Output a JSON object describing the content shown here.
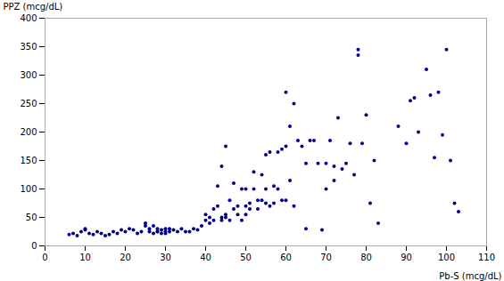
{
  "chart_data": {
    "type": "scatter",
    "xlabel": "Pb-S (mcg/dL)",
    "ylabel": "PPZ (mcg/dL)",
    "x": [
      6,
      7,
      8,
      9,
      10,
      10,
      11,
      12,
      13,
      14,
      15,
      16,
      17,
      18,
      19,
      20,
      21,
      22,
      23,
      24,
      25,
      25,
      26,
      26,
      27,
      27,
      28,
      28,
      28,
      29,
      29,
      30,
      30,
      30,
      31,
      31,
      32,
      33,
      34,
      35,
      36,
      37,
      38,
      39,
      40,
      40,
      41,
      41,
      42,
      42,
      43,
      43,
      44,
      44,
      44,
      45,
      45,
      45,
      46,
      46,
      47,
      47,
      48,
      48,
      49,
      49,
      50,
      50,
      50,
      51,
      51,
      52,
      52,
      53,
      53,
      54,
      54,
      55,
      55,
      55,
      56,
      56,
      57,
      57,
      58,
      58,
      59,
      59,
      60,
      60,
      60,
      61,
      61,
      62,
      62,
      63,
      64,
      65,
      65,
      66,
      67,
      68,
      69,
      70,
      70,
      71,
      72,
      72,
      73,
      74,
      75,
      76,
      77,
      78,
      78,
      79,
      80,
      81,
      82,
      83,
      88,
      90,
      91,
      92,
      93,
      95,
      96,
      97,
      98,
      99,
      100,
      101,
      102,
      103
    ],
    "values": [
      20,
      22,
      18,
      25,
      28,
      30,
      22,
      20,
      25,
      22,
      18,
      20,
      25,
      22,
      28,
      25,
      30,
      28,
      22,
      25,
      35,
      40,
      30,
      25,
      22,
      35,
      25,
      30,
      25,
      28,
      22,
      30,
      25,
      22,
      30,
      25,
      28,
      25,
      30,
      25,
      25,
      30,
      28,
      35,
      45,
      55,
      50,
      40,
      65,
      45,
      70,
      105,
      50,
      140,
      45,
      55,
      175,
      50,
      80,
      45,
      65,
      110,
      70,
      55,
      100,
      45,
      55,
      70,
      100,
      75,
      65,
      100,
      130,
      80,
      65,
      125,
      80,
      75,
      160,
      100,
      70,
      165,
      105,
      75,
      100,
      165,
      170,
      80,
      270,
      80,
      175,
      115,
      210,
      250,
      70,
      185,
      175,
      145,
      30,
      185,
      185,
      145,
      28,
      145,
      100,
      185,
      140,
      115,
      225,
      135,
      145,
      180,
      125,
      345,
      335,
      180,
      230,
      75,
      150,
      40,
      210,
      180,
      255,
      260,
      200,
      310,
      265,
      155,
      270,
      195,
      345,
      150,
      75,
      60
    ],
    "color": "#00008b",
    "xlim": [
      0,
      110
    ],
    "ylim": [
      0,
      400
    ],
    "xticks": [
      0,
      10,
      20,
      30,
      40,
      50,
      60,
      70,
      80,
      90,
      100,
      110
    ],
    "yticks": [
      0,
      50,
      100,
      150,
      200,
      250,
      300,
      350,
      400
    ],
    "grid": false
  }
}
